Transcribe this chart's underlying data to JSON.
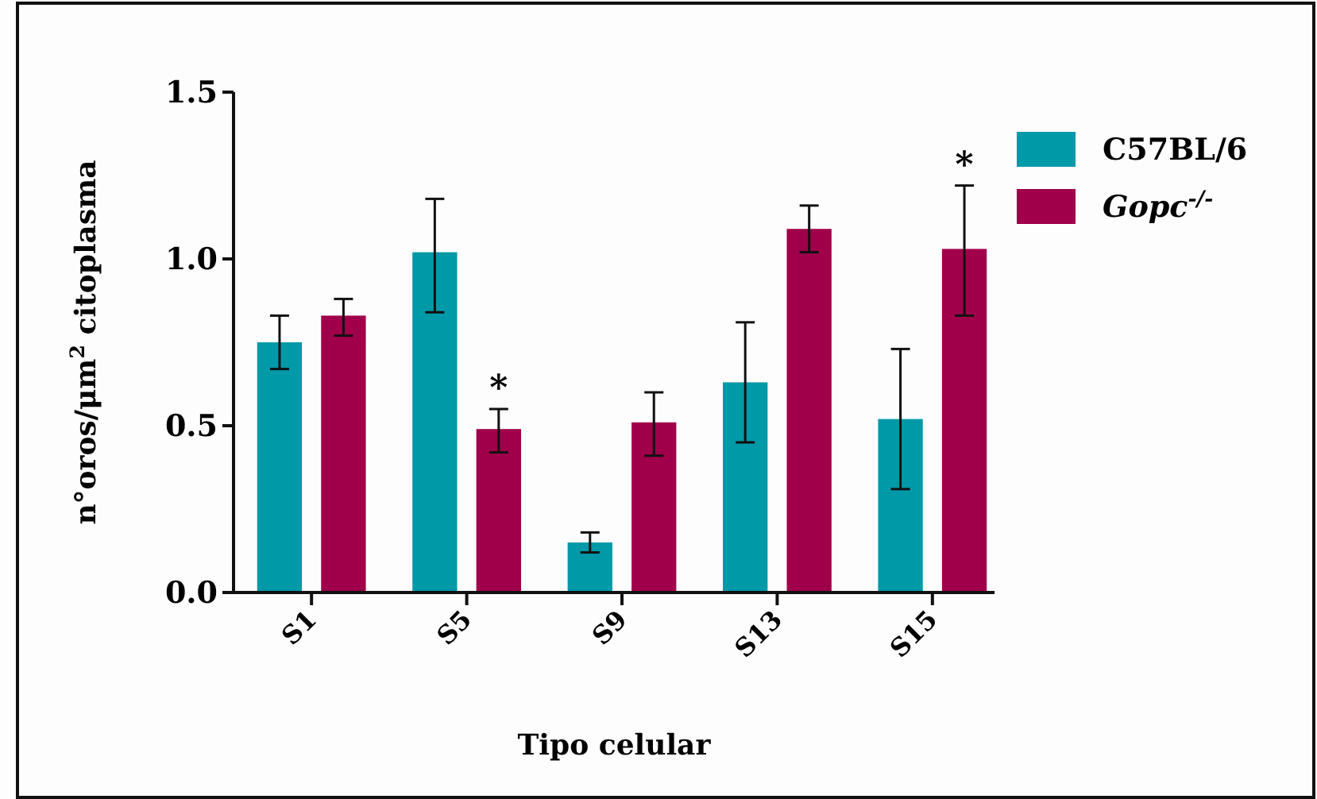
{
  "chart_data": {
    "type": "bar",
    "xlabel": "Tipo celular",
    "ylabel": "n°oros/μm$^{2}$ citoplasma",
    "categories": [
      "S1",
      "S5",
      "S9",
      "S13",
      "S15"
    ],
    "series": [
      {
        "name": "C57BL/6",
        "color": "#0099a8",
        "values": [
          0.75,
          1.02,
          0.15,
          0.63,
          0.52
        ],
        "errors": [
          [
            0.67,
            0.83
          ],
          [
            0.84,
            1.18
          ],
          [
            0.12,
            0.18
          ],
          [
            0.45,
            0.81
          ],
          [
            0.31,
            0.73
          ]
        ]
      },
      {
        "name": "Gopc$^{-/-}$",
        "color": "#a0004a",
        "values": [
          0.83,
          0.49,
          0.51,
          1.09,
          1.03
        ],
        "errors": [
          [
            0.77,
            0.88
          ],
          [
            0.42,
            0.55
          ],
          [
            0.41,
            0.6
          ],
          [
            1.02,
            1.16
          ],
          [
            0.83,
            1.22
          ]
        ]
      }
    ],
    "ylim": [
      0,
      1.5
    ],
    "yticks": [
      {
        "value": 0,
        "label": "0.0"
      },
      {
        "value": 0.5,
        "label": "0.5"
      },
      {
        "value": 1,
        "label": "1.0"
      },
      {
        "value": 1.5,
        "label": "1.5"
      }
    ],
    "grid": false,
    "legend": "right",
    "annotations": [
      "*",
      "*"
    ]
  }
}
